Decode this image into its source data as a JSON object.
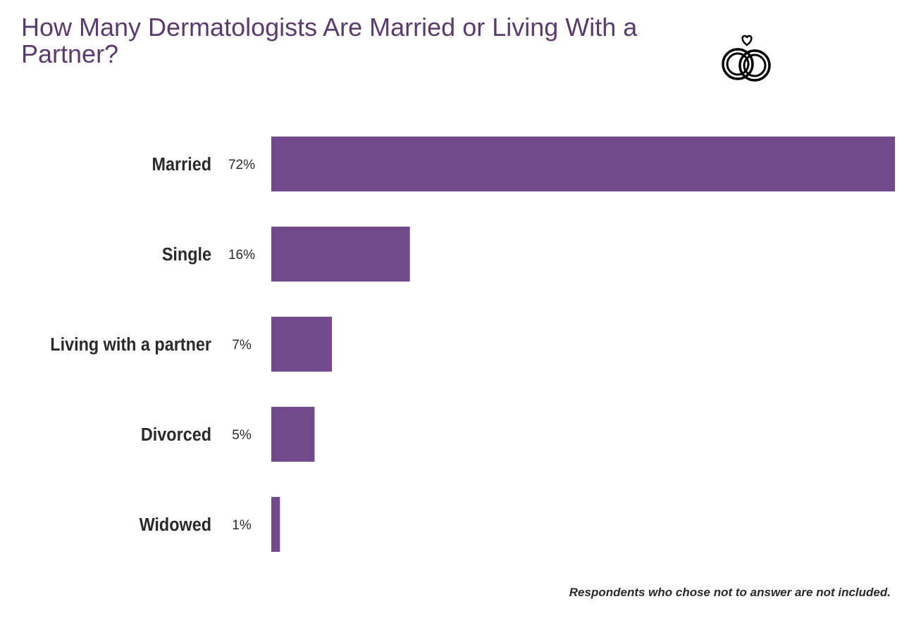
{
  "chart_data": {
    "type": "bar",
    "orientation": "horizontal",
    "title": "How Many Dermatologists Are Married or Living With a Partner?",
    "categories": [
      "Married",
      "Single",
      "Living with a partner",
      "Divorced",
      "Widowed"
    ],
    "values": [
      72,
      16,
      7,
      5,
      1
    ],
    "value_labels": [
      "72%",
      "16%",
      "7%",
      "5%",
      "1%"
    ],
    "unit": "%",
    "xlim": [
      0,
      72
    ],
    "grid": false,
    "bar_color": "#714a8c",
    "title_color": "#5b3a6e",
    "note": "Respondents who chose not to answer are not included."
  },
  "icon": "wedding-rings-heart-icon"
}
